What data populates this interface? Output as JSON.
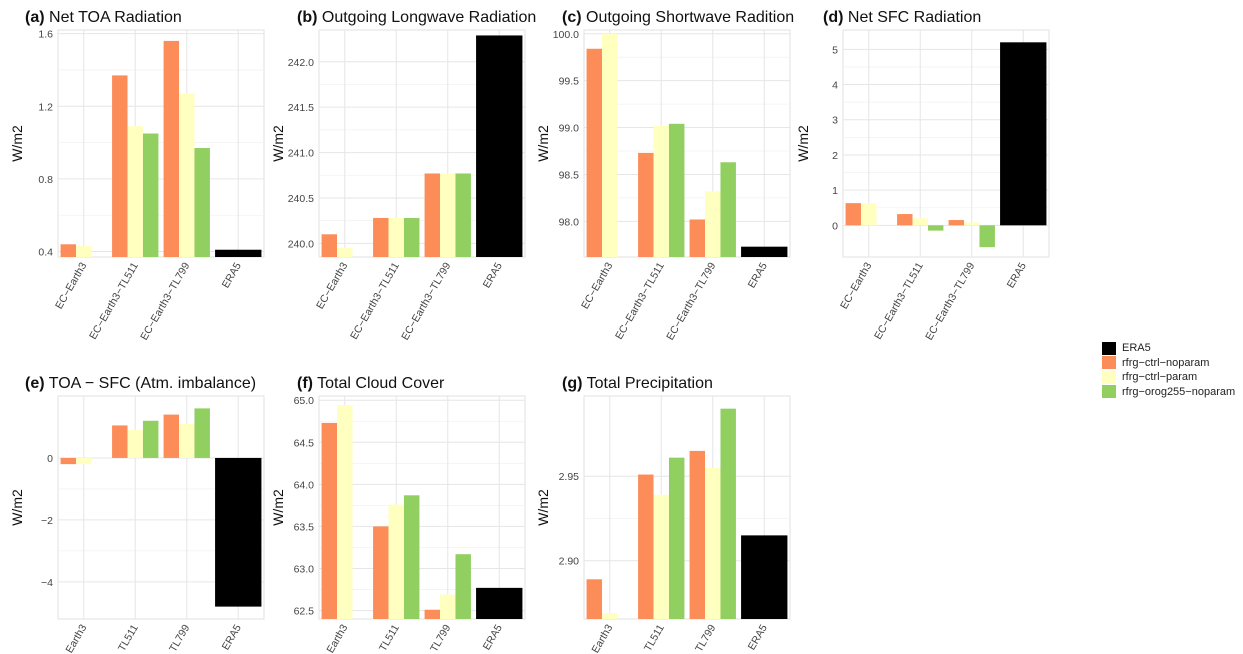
{
  "legend": {
    "items": [
      {
        "label": "ERA5",
        "color": "#000000"
      },
      {
        "label": "rfrg−ctrl−noparam",
        "color": "#FC8D59"
      },
      {
        "label": "rfrg−ctrl−param",
        "color": "#FFFFBF"
      },
      {
        "label": "rfrg−orog255−noparam",
        "color": "#91CF60"
      }
    ]
  },
  "chart_data": [
    {
      "panel": "(a)",
      "title": "Net TOA Radiation",
      "type": "bar",
      "ylabel": "W/m2",
      "ylim": [
        0.37,
        1.62
      ],
      "yticks": [
        0.4,
        0.8,
        1.2,
        1.6
      ],
      "ytick_labels": [
        "0.4",
        "0.8",
        "1.2",
        "1.6"
      ],
      "grid": true,
      "categories": [
        "EC−Earth3",
        "EC−Earth3−TL511",
        "EC−Earth3−TL799",
        "ERA5"
      ],
      "series": [
        {
          "name": "rfrg−ctrl−noparam",
          "values": [
            0.44,
            1.37,
            1.56,
            null
          ]
        },
        {
          "name": "rfrg−ctrl−param",
          "values": [
            0.43,
            1.09,
            1.27,
            null
          ]
        },
        {
          "name": "rfrg−orog255−noparam",
          "values": [
            null,
            1.05,
            0.97,
            null
          ]
        },
        {
          "name": "ERA5",
          "values": [
            null,
            null,
            null,
            0.41
          ]
        }
      ]
    },
    {
      "panel": "(b)",
      "title": "Outgoing Longwave Radiation",
      "type": "bar",
      "ylabel": "W/m2",
      "ylim": [
        239.85,
        242.35
      ],
      "yticks": [
        240.0,
        240.5,
        241.0,
        241.5,
        242.0
      ],
      "ytick_labels": [
        "240.0",
        "240.5",
        "241.0",
        "241.5",
        "242.0"
      ],
      "grid": true,
      "categories": [
        "EC−Earth3",
        "EC−Earth3−TL511",
        "EC−Earth3−TL799",
        "ERA5"
      ],
      "series": [
        {
          "name": "rfrg−ctrl−noparam",
          "values": [
            240.1,
            240.28,
            240.77,
            null
          ]
        },
        {
          "name": "rfrg−ctrl−param",
          "values": [
            239.95,
            240.28,
            240.77,
            null
          ]
        },
        {
          "name": "rfrg−orog255−noparam",
          "values": [
            null,
            240.28,
            240.77,
            null
          ]
        },
        {
          "name": "ERA5",
          "values": [
            null,
            null,
            null,
            242.29
          ]
        }
      ]
    },
    {
      "panel": "(c)",
      "title": "Outgoing Shortwave Radition",
      "type": "bar",
      "ylabel": "W/m2",
      "ylim": [
        97.62,
        100.04
      ],
      "yticks": [
        98.0,
        98.5,
        99.0,
        99.5,
        100.0
      ],
      "ytick_labels": [
        "98.0",
        "98.5",
        "99.0",
        "99.5",
        "100.0"
      ],
      "grid": true,
      "categories": [
        "EC−Earth3",
        "EC−Earth3−TL511",
        "EC−Earth3−TL799",
        "ERA5"
      ],
      "series": [
        {
          "name": "rfrg−ctrl−noparam",
          "values": [
            99.84,
            98.73,
            98.02,
            null
          ]
        },
        {
          "name": "rfrg−ctrl−param",
          "values": [
            100.0,
            99.02,
            98.32,
            null
          ]
        },
        {
          "name": "rfrg−orog255−noparam",
          "values": [
            null,
            99.04,
            98.63,
            null
          ]
        },
        {
          "name": "ERA5",
          "values": [
            null,
            null,
            null,
            97.73
          ]
        }
      ]
    },
    {
      "panel": "(d)",
      "title": "Net SFC Radiation",
      "type": "bar",
      "ylabel": "W/m2",
      "ylim": [
        -0.9,
        5.55
      ],
      "yticks": [
        0,
        1,
        2,
        3,
        4,
        5
      ],
      "ytick_labels": [
        "0",
        "1",
        "2",
        "3",
        "4",
        "5"
      ],
      "grid": true,
      "categories": [
        "EC−Earth3",
        "EC−Earth3−TL511",
        "EC−Earth3−TL799",
        "ERA5"
      ],
      "series": [
        {
          "name": "rfrg−ctrl−noparam",
          "values": [
            0.63,
            0.32,
            0.15,
            null
          ]
        },
        {
          "name": "rfrg−ctrl−param",
          "values": [
            0.63,
            0.2,
            0.08,
            null
          ]
        },
        {
          "name": "rfrg−orog255−noparam",
          "values": [
            null,
            -0.15,
            -0.62,
            null
          ]
        },
        {
          "name": "ERA5",
          "values": [
            null,
            null,
            null,
            5.2
          ]
        }
      ]
    },
    {
      "panel": "(e)",
      "title": "TOA − SFC (Atm. imbalance)",
      "type": "bar",
      "ylabel": "W/m2",
      "ylim": [
        -5.2,
        2.0
      ],
      "yticks": [
        -4,
        -2,
        0
      ],
      "ytick_labels": [
        "−4",
        "−2",
        "0"
      ],
      "grid": true,
      "categories": [
        "EC−Earth3",
        "EC−Earth3−TL511",
        "EC−Earth3−TL799",
        "ERA5"
      ],
      "visible_tick_labels": [
        "Earth3",
        "TL511",
        "TL799",
        "ERA5"
      ],
      "series": [
        {
          "name": "rfrg−ctrl−noparam",
          "values": [
            -0.2,
            1.05,
            1.4,
            null
          ]
        },
        {
          "name": "rfrg−ctrl−param",
          "values": [
            -0.2,
            0.9,
            1.1,
            null
          ]
        },
        {
          "name": "rfrg−orog255−noparam",
          "values": [
            null,
            1.2,
            1.6,
            null
          ]
        },
        {
          "name": "ERA5",
          "values": [
            null,
            null,
            null,
            -4.8
          ]
        }
      ]
    },
    {
      "panel": "(f)",
      "title": "Total Cloud Cover",
      "type": "bar",
      "ylabel": "W/m2",
      "ylim": [
        62.4,
        65.05
      ],
      "yticks": [
        62.5,
        63.0,
        63.5,
        64.0,
        64.5,
        65.0
      ],
      "ytick_labels": [
        "62.5",
        "63.0",
        "63.5",
        "64.0",
        "64.5",
        "65.0"
      ],
      "grid": true,
      "categories": [
        "EC−Earth3",
        "EC−Earth3−TL511",
        "EC−Earth3−TL799",
        "ERA5"
      ],
      "visible_tick_labels": [
        "Earth3",
        "TL511",
        "TL799",
        "ERA5"
      ],
      "series": [
        {
          "name": "rfrg−ctrl−noparam",
          "values": [
            64.73,
            63.5,
            62.51,
            null
          ]
        },
        {
          "name": "rfrg−ctrl−param",
          "values": [
            64.94,
            63.76,
            62.69,
            null
          ]
        },
        {
          "name": "rfrg−orog255−noparam",
          "values": [
            null,
            63.87,
            63.17,
            null
          ]
        },
        {
          "name": "ERA5",
          "values": [
            null,
            null,
            null,
            62.77
          ]
        }
      ]
    },
    {
      "panel": "(g)",
      "title": "Total Precipitation",
      "type": "bar",
      "ylabel": "W/m2",
      "ylim": [
        2.8655,
        2.9975
      ],
      "yticks": [
        2.9,
        2.95
      ],
      "ytick_labels": [
        "2.90",
        "2.95"
      ],
      "grid": true,
      "categories": [
        "EC−Earth3",
        "EC−Earth3−TL511",
        "EC−Earth3−TL799",
        "ERA5"
      ],
      "visible_tick_labels": [
        "Earth3",
        "TL511",
        "TL799",
        "ERA5"
      ],
      "series": [
        {
          "name": "rfrg−ctrl−noparam",
          "values": [
            2.889,
            2.951,
            2.965,
            null
          ]
        },
        {
          "name": "rfrg−ctrl−param",
          "values": [
            2.869,
            2.939,
            2.955,
            null
          ]
        },
        {
          "name": "rfrg−orog255−noparam",
          "values": [
            null,
            2.961,
            2.99,
            null
          ]
        },
        {
          "name": "ERA5",
          "values": [
            null,
            null,
            null,
            2.915
          ]
        }
      ]
    }
  ]
}
